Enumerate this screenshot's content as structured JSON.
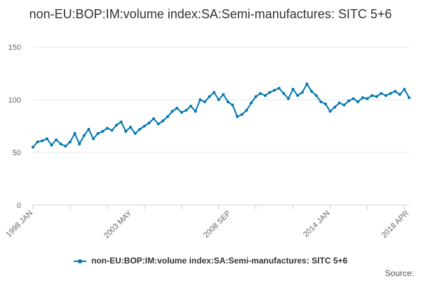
{
  "chart_data": {
    "type": "line",
    "title": "non-EU:BOP:IM:volume index:SA:Semi-manufactures: SITC 5+6",
    "xlabel": "",
    "ylabel": "",
    "ylim": [
      0,
      150
    ],
    "yticks": [
      0,
      50,
      100,
      150
    ],
    "grid": true,
    "legend_position": "bottom",
    "x_range": [
      "1998-01",
      "2018-04"
    ],
    "x_tick_labels": [
      {
        "label": "1998 JAN",
        "date": "1998-01"
      },
      {
        "label": "2003 MAY",
        "date": "2003-05"
      },
      {
        "label": "2008 SEP",
        "date": "2008-09"
      },
      {
        "label": "2014 JAN",
        "date": "2014-01"
      },
      {
        "label": "2018 APR",
        "date": "2018-04"
      }
    ],
    "x_minor_tick_years": [
      1998,
      2000,
      2002,
      2004,
      2006,
      2008,
      2010,
      2012,
      2014,
      2016,
      2018
    ],
    "series": [
      {
        "name": "non-EU:BOP:IM:volume index:SA:Semi-manufactures: SITC 5+6",
        "color": "#0077b0",
        "points": [
          [
            "1998-01",
            55
          ],
          [
            "1998-04",
            60
          ],
          [
            "1998-07",
            61
          ],
          [
            "1998-10",
            63
          ],
          [
            "1999-01",
            57
          ],
          [
            "1999-04",
            62
          ],
          [
            "1999-07",
            58
          ],
          [
            "1999-10",
            56
          ],
          [
            "2000-01",
            60
          ],
          [
            "2000-04",
            68
          ],
          [
            "2000-07",
            58
          ],
          [
            "2000-10",
            66
          ],
          [
            "2001-01",
            72
          ],
          [
            "2001-04",
            63
          ],
          [
            "2001-07",
            68
          ],
          [
            "2001-10",
            70
          ],
          [
            "2002-01",
            73
          ],
          [
            "2002-04",
            71
          ],
          [
            "2002-07",
            76
          ],
          [
            "2002-10",
            79
          ],
          [
            "2003-01",
            70
          ],
          [
            "2003-04",
            74
          ],
          [
            "2003-07",
            68
          ],
          [
            "2003-10",
            72
          ],
          [
            "2004-01",
            75
          ],
          [
            "2004-04",
            78
          ],
          [
            "2004-07",
            82
          ],
          [
            "2004-10",
            77
          ],
          [
            "2005-01",
            80
          ],
          [
            "2005-04",
            84
          ],
          [
            "2005-07",
            89
          ],
          [
            "2005-10",
            92
          ],
          [
            "2006-01",
            88
          ],
          [
            "2006-04",
            90
          ],
          [
            "2006-07",
            94
          ],
          [
            "2006-10",
            89
          ],
          [
            "2007-01",
            100
          ],
          [
            "2007-04",
            98
          ],
          [
            "2007-07",
            103
          ],
          [
            "2007-10",
            107
          ],
          [
            "2008-01",
            100
          ],
          [
            "2008-04",
            105
          ],
          [
            "2008-07",
            98
          ],
          [
            "2008-10",
            95
          ],
          [
            "2009-01",
            84
          ],
          [
            "2009-04",
            86
          ],
          [
            "2009-07",
            90
          ],
          [
            "2009-10",
            97
          ],
          [
            "2010-01",
            103
          ],
          [
            "2010-04",
            106
          ],
          [
            "2010-07",
            104
          ],
          [
            "2010-10",
            107
          ],
          [
            "2011-01",
            109
          ],
          [
            "2011-04",
            111
          ],
          [
            "2011-07",
            106
          ],
          [
            "2011-10",
            101
          ],
          [
            "2012-01",
            110
          ],
          [
            "2012-04",
            104
          ],
          [
            "2012-07",
            107
          ],
          [
            "2012-10",
            115
          ],
          [
            "2013-01",
            108
          ],
          [
            "2013-04",
            104
          ],
          [
            "2013-07",
            98
          ],
          [
            "2013-10",
            96
          ],
          [
            "2014-01",
            89
          ],
          [
            "2014-04",
            93
          ],
          [
            "2014-07",
            97
          ],
          [
            "2014-10",
            95
          ],
          [
            "2015-01",
            99
          ],
          [
            "2015-04",
            101
          ],
          [
            "2015-07",
            98
          ],
          [
            "2015-10",
            102
          ],
          [
            "2016-01",
            101
          ],
          [
            "2016-04",
            104
          ],
          [
            "2016-07",
            103
          ],
          [
            "2016-10",
            106
          ],
          [
            "2017-01",
            104
          ],
          [
            "2017-04",
            106
          ],
          [
            "2017-07",
            108
          ],
          [
            "2017-10",
            105
          ],
          [
            "2018-01",
            110
          ],
          [
            "2018-04",
            102
          ]
        ]
      }
    ]
  },
  "legend": {
    "label": "non-EU:BOP:IM:volume index:SA:Semi-manufactures: SITC 5+6"
  },
  "footer": {
    "source_label": "Source:"
  }
}
